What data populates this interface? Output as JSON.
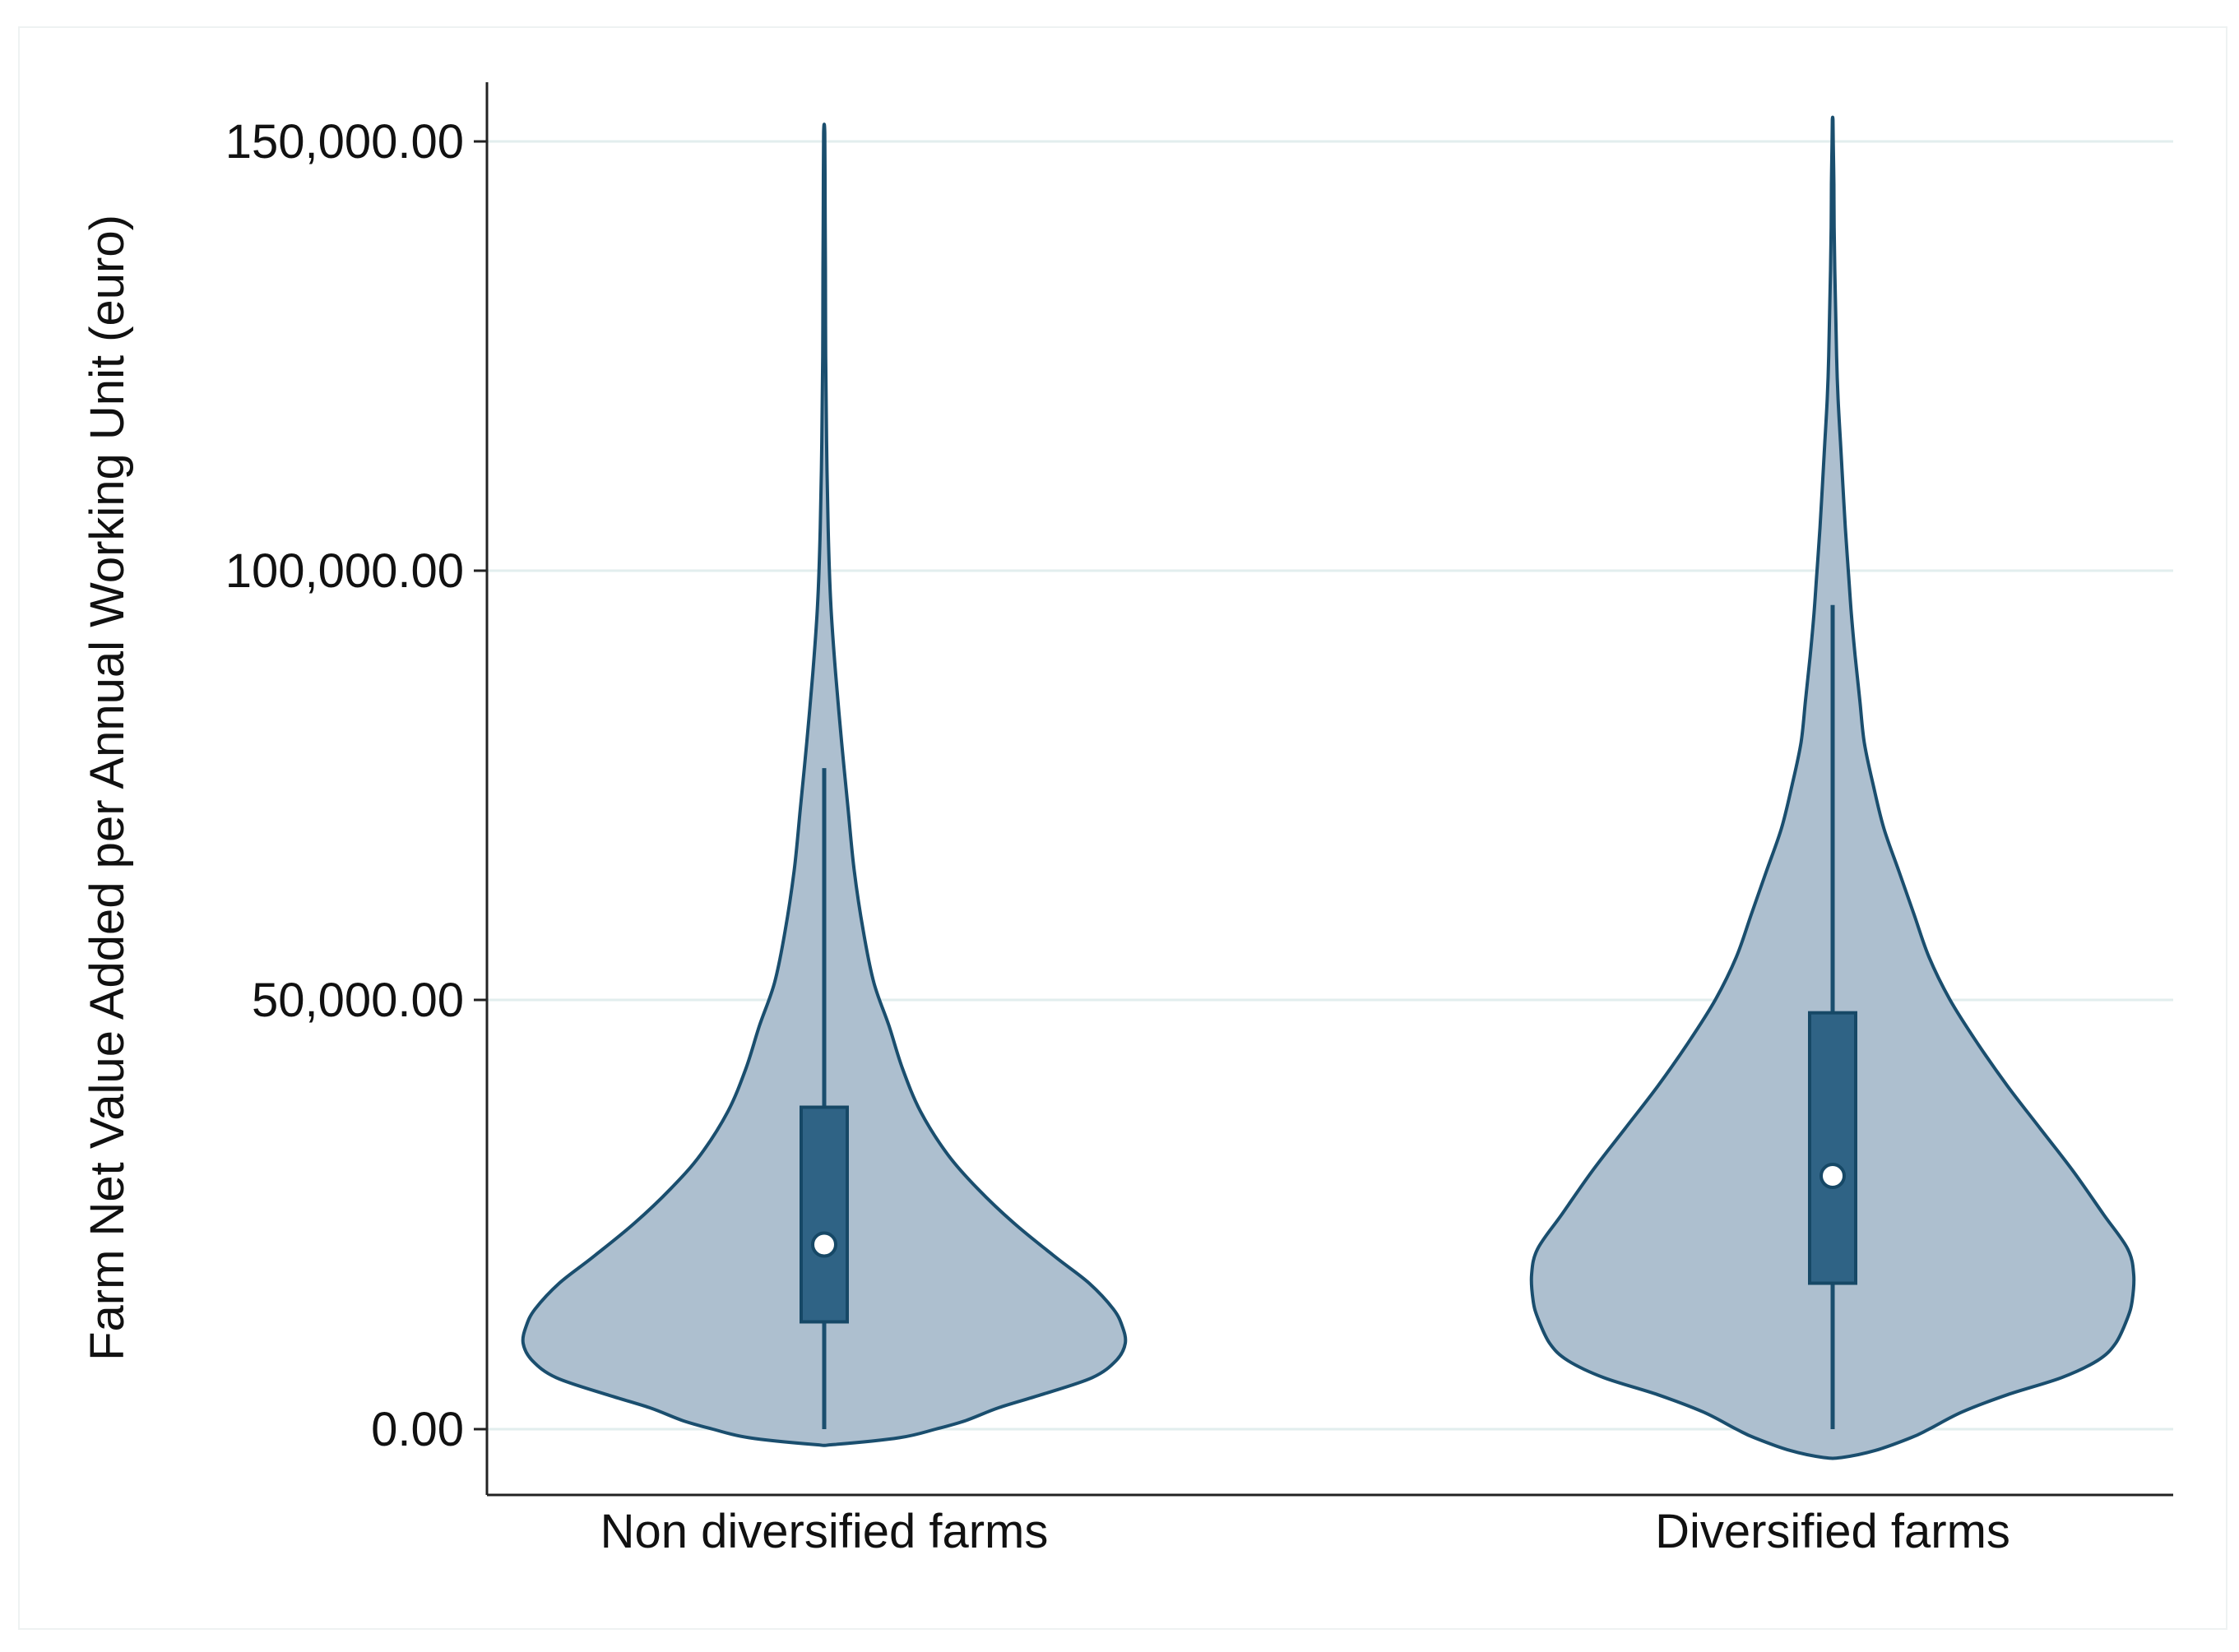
{
  "chart_data": {
    "type": "violin",
    "title": "",
    "xlabel": "",
    "ylabel": "Farm Net Value Added per Annual Working Unit (euro)",
    "ylim": [
      -3500,
      157000
    ],
    "yticks": [
      0,
      50000,
      100000,
      150000
    ],
    "ytick_labels": [
      "0.00",
      "50,000.00",
      "100,000.00",
      "150,000.00"
    ],
    "grid": true,
    "categories": [
      "Non diversified farms",
      "Diversified farms"
    ],
    "colors": {
      "violin_fill": "#adbfcf",
      "violin_edge": "#1a4e6e",
      "box_fill": "#2f6385",
      "median_dot": "#ffffff",
      "grid": "#e2eeee",
      "axis": "#222222"
    },
    "series": [
      {
        "name": "Non diversified farms",
        "box": {
          "whisker_low": 0,
          "q1": 12500,
          "median": 21500,
          "q3": 37500,
          "whisker_high": 77000
        },
        "density_profile": [
          [
            -1800,
            0.03
          ],
          [
            -1000,
            0.25
          ],
          [
            0,
            0.37
          ],
          [
            1000,
            0.47
          ],
          [
            2500,
            0.58
          ],
          [
            4000,
            0.72
          ],
          [
            6000,
            0.89
          ],
          [
            8000,
            0.97
          ],
          [
            10000,
            1.0
          ],
          [
            12000,
            0.99
          ],
          [
            14000,
            0.96
          ],
          [
            17000,
            0.88
          ],
          [
            20000,
            0.77
          ],
          [
            24000,
            0.63
          ],
          [
            28000,
            0.51
          ],
          [
            32000,
            0.41
          ],
          [
            37000,
            0.32
          ],
          [
            42000,
            0.26
          ],
          [
            47000,
            0.215
          ],
          [
            52000,
            0.165
          ],
          [
            58000,
            0.13
          ],
          [
            65000,
            0.1
          ],
          [
            72000,
            0.08
          ],
          [
            80000,
            0.058
          ],
          [
            88000,
            0.038
          ],
          [
            96000,
            0.022
          ],
          [
            105000,
            0.013
          ],
          [
            115000,
            0.008
          ],
          [
            125000,
            0.005
          ],
          [
            135000,
            0.004
          ],
          [
            143000,
            0.003
          ],
          [
            151000,
            0.002
          ]
        ]
      },
      {
        "name": "Diversified farms",
        "box": {
          "whisker_low": 0,
          "q1": 17000,
          "median": 29500,
          "q3": 48500,
          "whisker_high": 96000
        },
        "density_profile": [
          [
            -3300,
            0.03
          ],
          [
            -2500,
            0.14
          ],
          [
            -1000,
            0.26
          ],
          [
            0,
            0.32
          ],
          [
            2000,
            0.43
          ],
          [
            4000,
            0.58
          ],
          [
            6000,
            0.76
          ],
          [
            8000,
            0.88
          ],
          [
            10000,
            0.94
          ],
          [
            13000,
            0.98
          ],
          [
            15000,
            0.995
          ],
          [
            18000,
            1.0
          ],
          [
            21000,
            0.98
          ],
          [
            25000,
            0.9
          ],
          [
            30000,
            0.8
          ],
          [
            35000,
            0.69
          ],
          [
            40000,
            0.58
          ],
          [
            45000,
            0.48
          ],
          [
            50000,
            0.39
          ],
          [
            55000,
            0.32
          ],
          [
            60000,
            0.27
          ],
          [
            65000,
            0.22
          ],
          [
            70000,
            0.17
          ],
          [
            75000,
            0.135
          ],
          [
            80000,
            0.105
          ],
          [
            85000,
            0.09
          ],
          [
            90000,
            0.075
          ],
          [
            95000,
            0.062
          ],
          [
            100000,
            0.052
          ],
          [
            105000,
            0.042
          ],
          [
            110000,
            0.034
          ],
          [
            115000,
            0.026
          ],
          [
            120000,
            0.018
          ],
          [
            125000,
            0.013
          ],
          [
            130000,
            0.01
          ],
          [
            135000,
            0.007
          ],
          [
            140000,
            0.005
          ],
          [
            145000,
            0.004
          ],
          [
            150000,
            0.002
          ],
          [
            152500,
            0.001
          ]
        ]
      }
    ]
  }
}
